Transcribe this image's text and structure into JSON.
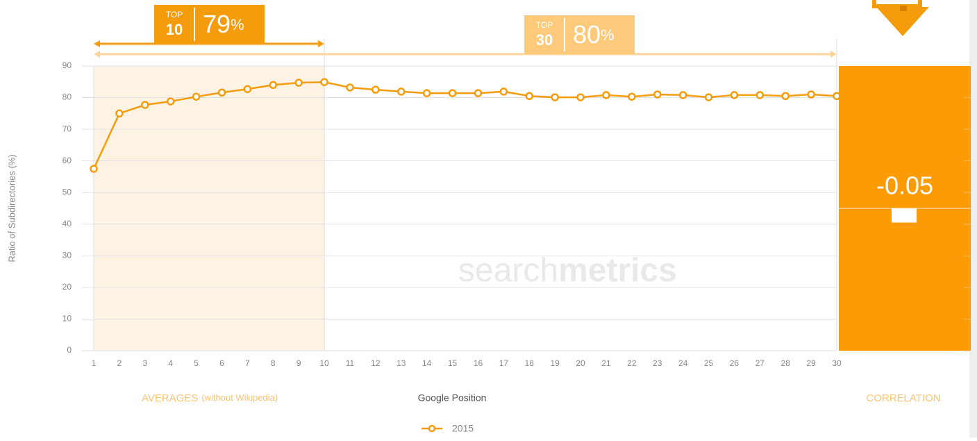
{
  "chart_data": {
    "type": "line",
    "y_label": "Ratio of Subdirectories (%)",
    "x_label": "Google Position",
    "x": [
      1,
      2,
      3,
      4,
      5,
      6,
      7,
      8,
      9,
      10,
      11,
      12,
      13,
      14,
      15,
      16,
      17,
      18,
      19,
      20,
      21,
      22,
      23,
      24,
      25,
      26,
      27,
      28,
      29,
      30
    ],
    "xlim": [
      1,
      30
    ],
    "xticks": [
      1,
      2,
      3,
      4,
      5,
      6,
      7,
      8,
      9,
      10,
      11,
      12,
      13,
      14,
      15,
      16,
      17,
      18,
      19,
      20,
      21,
      22,
      23,
      24,
      25,
      26,
      27,
      28,
      29,
      30
    ],
    "ylim": [
      0,
      90
    ],
    "yticks": [
      0,
      10,
      20,
      30,
      40,
      50,
      60,
      70,
      80,
      90
    ],
    "grid": true,
    "series": [
      {
        "name": "2015",
        "color": "#f59c0c",
        "values": [
          57.5,
          75,
          77.7,
          78.8,
          80.3,
          81.6,
          82.7,
          84,
          84.7,
          84.9,
          83.2,
          82.5,
          81.9,
          81.4,
          81.4,
          81.4,
          81.9,
          80.5,
          80.1,
          80.1,
          80.8,
          80.3,
          81,
          80.8,
          80.1,
          80.8,
          80.8,
          80.5,
          81,
          80.5
        ]
      }
    ],
    "top10": {
      "label": "TOP",
      "rank": "10",
      "value": "79",
      "unit": "%",
      "range": [
        1,
        10
      ]
    },
    "top30": {
      "label": "TOP",
      "rank": "30",
      "value": "80",
      "unit": "%",
      "range": [
        1,
        30
      ]
    },
    "averages_label": "AVERAGES",
    "averages_note": "(without Wikipedia)",
    "correlation_label": "CORRELATION",
    "correlation": -0.05,
    "correlation_value_label": "-0.05",
    "correlation_lim": [
      -0.5,
      0.5
    ],
    "watermark": [
      "search",
      "metrics"
    ]
  }
}
